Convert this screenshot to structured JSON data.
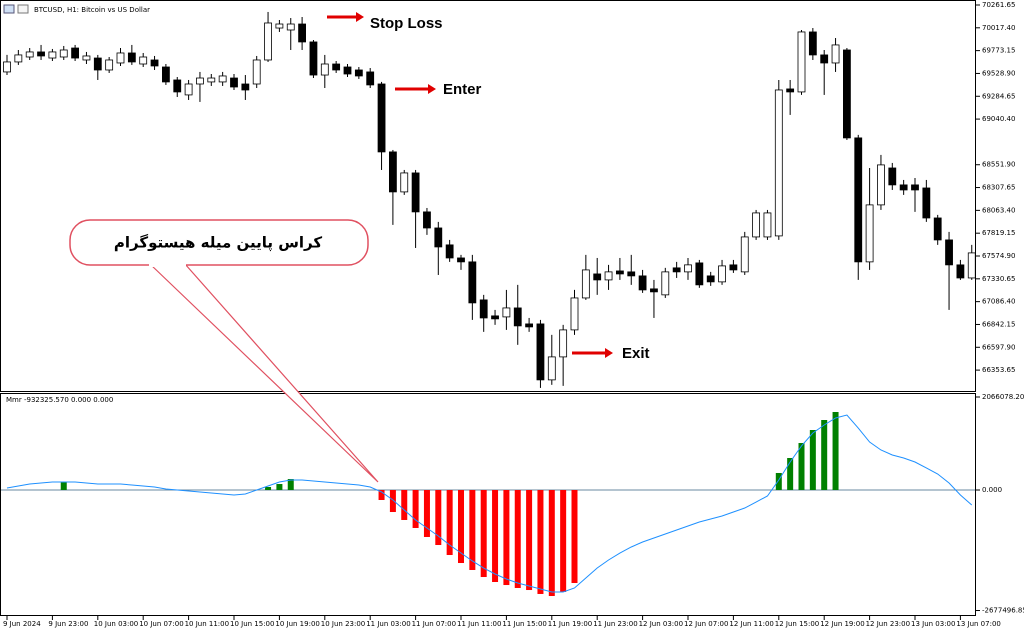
{
  "chart_data": [
    {
      "type": "candlestick",
      "title": "BTCUSD, H1: Bitcoin vs US Dollar",
      "open": [
        69545,
        69652,
        69705,
        69759,
        69694,
        69705,
        69801,
        69673,
        69694,
        69566,
        69641,
        69748,
        69630,
        69673,
        69598,
        69459,
        69299,
        69416,
        69438,
        69438,
        69480,
        69416,
        69416,
        69673,
        70015,
        69994,
        70058,
        69866,
        69512,
        69630,
        69598,
        69566,
        69545,
        69416,
        68689,
        68261,
        68464,
        68047,
        67875,
        67694,
        67554,
        67512,
        67105,
        66934,
        66923,
        67019,
        66848,
        66848,
        66249,
        66495,
        66784,
        67126,
        67383,
        67319,
        67415,
        67405,
        67362,
        67223,
        67159,
        67448,
        67405,
        67501,
        67362,
        67298,
        67480,
        67405,
        67779,
        67779,
        67790,
        69363,
        69331,
        69973,
        69727,
        69641,
        69780,
        68839,
        67512,
        68122,
        68517,
        68336,
        68336,
        68303,
        67982,
        67747,
        67480,
        67340
      ],
      "high": [
        69727,
        69780,
        69801,
        69834,
        69791,
        69823,
        69834,
        69759,
        69727,
        69705,
        69801,
        69834,
        69748,
        69716,
        69630,
        69491,
        69459,
        69545,
        69523,
        69545,
        69523,
        69512,
        69716,
        70187,
        70101,
        70122,
        70133,
        69887,
        69727,
        69662,
        69630,
        69598,
        69587,
        69438,
        68710,
        68496,
        68496,
        68089,
        67940,
        67747,
        67587,
        67587,
        67159,
        66998,
        67212,
        67266,
        66912,
        66891,
        66731,
        66838,
        67212,
        67587,
        67554,
        67480,
        67554,
        67587,
        67426,
        67319,
        67448,
        67512,
        67554,
        67533,
        67405,
        67533,
        67533,
        67833,
        68068,
        68068,
        69459,
        69459,
        69994,
        70015,
        69780,
        69908,
        69801,
        68871,
        68517,
        68657,
        68571,
        68389,
        68410,
        68389,
        68015,
        67833,
        67533,
        67694
      ],
      "low": [
        69512,
        69620,
        69673,
        69673,
        69662,
        69673,
        69662,
        69630,
        69459,
        69534,
        69609,
        69620,
        69598,
        69566,
        69406,
        69277,
        69245,
        69224,
        69395,
        69395,
        69352,
        69245,
        69373,
        69652,
        69973,
        69780,
        69780,
        69480,
        69373,
        69534,
        69491,
        69470,
        69373,
        68496,
        67908,
        68229,
        67661,
        67801,
        67372,
        67512,
        67426,
        66891,
        66763,
        66838,
        66784,
        66624,
        66763,
        66163,
        66196,
        66185,
        66731,
        67105,
        67159,
        67212,
        67319,
        67266,
        67180,
        66912,
        67126,
        67340,
        67319,
        67234,
        67255,
        67266,
        67394,
        67372,
        67747,
        67747,
        67747,
        69085,
        69299,
        69673,
        69299,
        69545,
        68817,
        67319,
        67426,
        68068,
        68282,
        68229,
        68047,
        67940,
        67694,
        66998,
        67319,
        67319
      ],
      "close": [
        69652,
        69727,
        69759,
        69716,
        69759,
        69780,
        69694,
        69716,
        69566,
        69673,
        69748,
        69652,
        69705,
        69609,
        69438,
        69331,
        69416,
        69480,
        69480,
        69502,
        69384,
        69352,
        69673,
        70069,
        70058,
        70058,
        69866,
        69512,
        69630,
        69566,
        69523,
        69502,
        69406,
        68689,
        68261,
        68464,
        68047,
        67875,
        67672,
        67554,
        67512,
        67073,
        66912,
        66902,
        67019,
        66827,
        66816,
        66249,
        66495,
        66784,
        67126,
        67426,
        67319,
        67405,
        67383,
        67362,
        67212,
        67191,
        67405,
        67405,
        67480,
        67266,
        67298,
        67469,
        67426,
        67779,
        68036,
        68036,
        69352,
        69331,
        69973,
        69727,
        69641,
        69834,
        68839,
        67512,
        68122,
        68550,
        68336,
        68282,
        68282,
        67982,
        67747,
        67480,
        67340,
        67608
      ],
      "up_color": "#ffffff",
      "down_color": "#000000",
      "ylim": [
        66130,
        70315
      ],
      "yticks": [
        70261.65,
        {
          "value": 70017.4,
          "label": "70017.40"
        },
        69773.15,
        {
          "value": 69528.9,
          "label": "69528.90"
        },
        69284.65,
        {
          "value": 69040.4,
          "label": "69040.40"
        },
        {
          "value": 68551.9,
          "label": "68551.90"
        },
        68307.65,
        {
          "value": 68063.4,
          "label": "68063.40"
        },
        67819.15,
        {
          "value": 67574.9,
          "label": "67574.90"
        },
        67330.65,
        {
          "value": 67086.4,
          "label": "67086.40"
        },
        66842.15,
        {
          "value": 66597.9,
          "label": "66597.90"
        },
        66353.65
      ],
      "annotations": [
        "Stop Loss",
        "Enter",
        "Exit",
        "کراس پایین میله هیستوگرام"
      ]
    },
    {
      "type": "bar",
      "title": "Mmr -932325.570 0.000 0.000",
      "categories": [
        "9 Jun 2024",
        null,
        null,
        null,
        "9 Jun 23:00",
        null,
        null,
        null,
        "10 Jun 03:00",
        null,
        null,
        null,
        "10 Jun 07:00",
        null,
        null,
        null,
        "10 Jun 11:00",
        null,
        null,
        null,
        "10 Jun 15:00",
        null,
        null,
        null,
        "10 Jun 19:00",
        null,
        null,
        null,
        "10 Jun 23:00",
        null,
        null,
        null,
        "11 Jun 03:00",
        null,
        null,
        null,
        "11 Jun 07:00",
        null,
        null,
        null,
        "11 Jun 11:00",
        null,
        null,
        null,
        "11 Jun 15:00",
        null,
        null,
        null,
        "11 Jun 19:00",
        null,
        null,
        null,
        "11 Jun 23:00",
        null,
        null,
        null,
        "12 Jun 03:00",
        null,
        null,
        null,
        "12 Jun 07:00",
        null,
        null,
        null,
        "12 Jun 11:00",
        null,
        null,
        null,
        "12 Jun 15:00",
        null,
        null,
        null,
        "12 Jun 19:00",
        null,
        null,
        null,
        "12 Jun 23:00",
        null,
        null,
        null,
        "13 Jun 03:00",
        null,
        null,
        null,
        "13 Jun 07:00",
        null
      ],
      "values": [
        0,
        0,
        0,
        0,
        0,
        178000,
        0,
        0,
        0,
        0,
        0,
        0,
        0,
        0,
        0,
        0,
        0,
        0,
        0,
        0,
        0,
        0,
        0,
        67000,
        133000,
        244000,
        0,
        0,
        0,
        0,
        0,
        0,
        0,
        -222000,
        -489000,
        -666000,
        -844000,
        -1044000,
        -1222000,
        -1444000,
        -1622000,
        -1777000,
        -1933000,
        -2044000,
        -2111000,
        -2177000,
        -2222000,
        -2310000,
        -2355000,
        -2266000,
        -2066000,
        0,
        0,
        0,
        0,
        0,
        0,
        0,
        0,
        0,
        0,
        0,
        0,
        0,
        0,
        0,
        0,
        0,
        378000,
        711000,
        1044000,
        1333000,
        1555000,
        1733000,
        0,
        0,
        0,
        0,
        0,
        0,
        0,
        0,
        0,
        0,
        0,
        0
      ],
      "signal": [
        44000,
        89000,
        133000,
        156000,
        178000,
        178000,
        178000,
        156000,
        133000,
        133000,
        133000,
        111000,
        89000,
        67000,
        22000,
        0,
        -22000,
        -44000,
        -67000,
        -89000,
        -111000,
        -89000,
        0,
        89000,
        178000,
        222000,
        222000,
        200000,
        178000,
        156000,
        133000,
        111000,
        67000,
        -44000,
        -222000,
        -444000,
        -666000,
        -844000,
        -1022000,
        -1222000,
        -1400000,
        -1577000,
        -1733000,
        -1866000,
        -1977000,
        -2066000,
        -2133000,
        -2199000,
        -2266000,
        -2266000,
        -2177000,
        -1955000,
        -1733000,
        -1555000,
        -1400000,
        -1266000,
        -1155000,
        -1066000,
        -978000,
        -889000,
        -800000,
        -711000,
        -644000,
        -578000,
        -489000,
        -400000,
        -267000,
        -133000,
        222000,
        622000,
        978000,
        1266000,
        1444000,
        1600000,
        1666000,
        1377000,
        1066000,
        889000,
        778000,
        711000,
        622000,
        489000,
        355000,
        155000,
        -111000,
        -333000
      ],
      "positive_color": "#008000",
      "negative_color": "#ff0000",
      "signal_color": "#1e90ff",
      "ylim": [
        -2777000,
        2155000
      ],
      "yticks": [
        2066078.208,
        {
          "value": 0,
          "label": "0.000"
        },
        -2677496.85
      ]
    }
  ]
}
